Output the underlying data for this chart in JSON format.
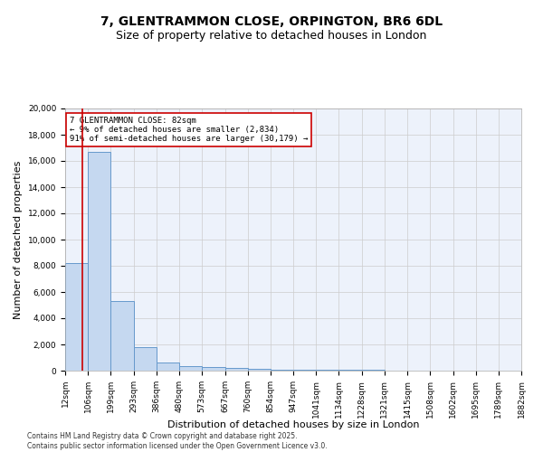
{
  "title": "7, GLENTRAMMON CLOSE, ORPINGTON, BR6 6DL",
  "subtitle": "Size of property relative to detached houses in London",
  "xlabel": "Distribution of detached houses by size in London",
  "ylabel": "Number of detached properties",
  "bar_color": "#c5d8f0",
  "bar_edge_color": "#6699cc",
  "bar_heights": [
    8200,
    16700,
    5300,
    1800,
    600,
    350,
    250,
    175,
    125,
    90,
    70,
    55,
    45,
    35,
    30,
    25,
    20,
    15,
    12,
    10
  ],
  "bin_edges": [
    12,
    106,
    199,
    293,
    386,
    480,
    573,
    667,
    760,
    854,
    947,
    1041,
    1134,
    1228,
    1321,
    1415,
    1508,
    1602,
    1695,
    1789,
    1882
  ],
  "x_tick_labels": [
    "12sqm",
    "106sqm",
    "199sqm",
    "293sqm",
    "386sqm",
    "480sqm",
    "573sqm",
    "667sqm",
    "760sqm",
    "854sqm",
    "947sqm",
    "1041sqm",
    "1134sqm",
    "1228sqm",
    "1321sqm",
    "1415sqm",
    "1508sqm",
    "1602sqm",
    "1695sqm",
    "1789sqm",
    "1882sqm"
  ],
  "ylim": [
    0,
    20000
  ],
  "yticks": [
    0,
    2000,
    4000,
    6000,
    8000,
    10000,
    12000,
    14000,
    16000,
    18000,
    20000
  ],
  "property_size": 82,
  "red_line_color": "#cc0000",
  "annotation_line1": "7 GLENTRAMMON CLOSE: 82sqm",
  "annotation_line2": "← 9% of detached houses are smaller (2,834)",
  "annotation_line3": "91% of semi-detached houses are larger (30,179) →",
  "annotation_box_color": "#ffffff",
  "annotation_box_edge": "#cc0000",
  "grid_color": "#cccccc",
  "bg_color": "#edf2fb",
  "footer": "Contains HM Land Registry data © Crown copyright and database right 2025.\nContains public sector information licensed under the Open Government Licence v3.0.",
  "title_fontsize": 10,
  "subtitle_fontsize": 9,
  "tick_fontsize": 6.5,
  "ylabel_fontsize": 8,
  "xlabel_fontsize": 8,
  "annotation_fontsize": 6.5
}
